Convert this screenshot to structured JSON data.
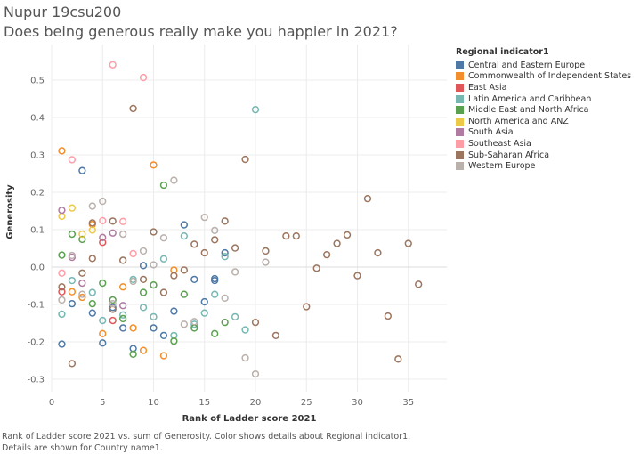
{
  "header": {
    "author": "Nupur 19csu200",
    "question": "Does being generous really make you happier in 2021?"
  },
  "legend": {
    "title": "Regional indicator1",
    "items": [
      {
        "label": "Central and Eastern Europe",
        "color": "#4e79a7"
      },
      {
        "label": "Commonwealth of Independent States",
        "color": "#f28e2b"
      },
      {
        "label": "East Asia",
        "color": "#e15759"
      },
      {
        "label": "Latin America and Caribbean",
        "color": "#76b7b2"
      },
      {
        "label": "Middle East and North Africa",
        "color": "#59a14f"
      },
      {
        "label": "North America and ANZ",
        "color": "#edc948"
      },
      {
        "label": "South Asia",
        "color": "#b07aa1"
      },
      {
        "label": "Southeast Asia",
        "color": "#ff9da7"
      },
      {
        "label": "Sub-Saharan Africa",
        "color": "#9c755f"
      },
      {
        "label": "Western Europe",
        "color": "#bab0ac"
      }
    ]
  },
  "footer": {
    "caption_line1": "Rank of Ladder score 2021 vs. sum of Generosity.  Color shows details about Regional indicator1.",
    "caption_line2": "Details are shown for Country name1."
  },
  "chart_data": {
    "type": "scatter",
    "title": "Does being generous really make you happier in 2021?",
    "xlabel": "Rank of Ladder score 2021",
    "ylabel": "Generosity",
    "xlim": [
      0,
      38
    ],
    "ylim": [
      -0.32,
      0.56
    ],
    "xticks": [
      0,
      5,
      10,
      15,
      20,
      25,
      30,
      35
    ],
    "yticks": [
      -0.3,
      -0.2,
      -0.1,
      0.0,
      0.1,
      0.2,
      0.3,
      0.4,
      0.5
    ],
    "ytick_labels": [
      "-0.3",
      "-0.2",
      "-0.1",
      "0.0",
      "0.1",
      "0.2",
      "0.3",
      "0.4",
      "0.5"
    ],
    "grid": true,
    "series": [
      {
        "name": "Central and Eastern Europe",
        "color": "#4e79a7",
        "points": [
          [
            1,
            -0.206
          ],
          [
            2,
            -0.098
          ],
          [
            3,
            0.258
          ],
          [
            4,
            -0.123
          ],
          [
            5,
            -0.203
          ],
          [
            6,
            -0.108
          ],
          [
            7,
            -0.163
          ],
          [
            8,
            -0.218
          ],
          [
            9,
            0.004
          ],
          [
            10,
            -0.163
          ],
          [
            11,
            -0.183
          ],
          [
            12,
            -0.118
          ],
          [
            13,
            0.113
          ],
          [
            14,
            -0.033
          ],
          [
            15,
            -0.093
          ],
          [
            16,
            -0.031
          ],
          [
            16,
            -0.036
          ],
          [
            17,
            0.038
          ]
        ]
      },
      {
        "name": "Commonwealth of Independent States",
        "color": "#f28e2b",
        "points": [
          [
            1,
            0.311
          ],
          [
            2,
            -0.066
          ],
          [
            3,
            -0.081
          ],
          [
            4,
            0.114
          ],
          [
            5,
            -0.178
          ],
          [
            7,
            -0.053
          ],
          [
            8,
            -0.163
          ],
          [
            9,
            -0.223
          ],
          [
            10,
            0.273
          ],
          [
            11,
            -0.237
          ],
          [
            12,
            -0.008
          ]
        ]
      },
      {
        "name": "East Asia",
        "color": "#e15759",
        "points": [
          [
            1,
            -0.066
          ],
          [
            5,
            0.066
          ],
          [
            6,
            -0.143
          ]
        ]
      },
      {
        "name": "Latin America and Caribbean",
        "color": "#76b7b2",
        "points": [
          [
            1,
            -0.126
          ],
          [
            2,
            -0.036
          ],
          [
            4,
            -0.068
          ],
          [
            5,
            -0.143
          ],
          [
            7,
            -0.128
          ],
          [
            8,
            -0.033
          ],
          [
            9,
            -0.108
          ],
          [
            10,
            -0.133
          ],
          [
            11,
            0.022
          ],
          [
            12,
            -0.183
          ],
          [
            13,
            0.083
          ],
          [
            14,
            -0.153
          ],
          [
            15,
            -0.123
          ],
          [
            16,
            -0.073
          ],
          [
            17,
            0.028
          ],
          [
            18,
            -0.133
          ],
          [
            19,
            -0.168
          ],
          [
            20,
            0.421
          ]
        ]
      },
      {
        "name": "Middle East and North Africa",
        "color": "#59a14f",
        "points": [
          [
            1,
            0.032
          ],
          [
            2,
            0.088
          ],
          [
            3,
            0.074
          ],
          [
            4,
            -0.098
          ],
          [
            5,
            -0.043
          ],
          [
            6,
            -0.088
          ],
          [
            7,
            -0.138
          ],
          [
            8,
            -0.233
          ],
          [
            9,
            -0.068
          ],
          [
            10,
            -0.048
          ],
          [
            11,
            0.219
          ],
          [
            12,
            -0.198
          ],
          [
            13,
            -0.073
          ],
          [
            14,
            -0.163
          ],
          [
            16,
            -0.178
          ],
          [
            17,
            -0.148
          ]
        ]
      },
      {
        "name": "North America and ANZ",
        "color": "#edc948",
        "points": [
          [
            1,
            0.136
          ],
          [
            2,
            0.158
          ],
          [
            3,
            0.088
          ],
          [
            4,
            0.099
          ]
        ]
      },
      {
        "name": "South Asia",
        "color": "#b07aa1",
        "points": [
          [
            1,
            0.152
          ],
          [
            2,
            0.026
          ],
          [
            3,
            -0.043
          ],
          [
            5,
            0.079
          ],
          [
            6,
            0.091
          ],
          [
            7,
            -0.103
          ]
        ]
      },
      {
        "name": "Southeast Asia",
        "color": "#ff9da7",
        "points": [
          [
            1,
            -0.016
          ],
          [
            2,
            0.287
          ],
          [
            5,
            0.124
          ],
          [
            6,
            0.541
          ],
          [
            7,
            0.122
          ],
          [
            8,
            0.036
          ],
          [
            9,
            0.507
          ]
        ]
      },
      {
        "name": "Sub-Saharan Africa",
        "color": "#9c755f",
        "points": [
          [
            1,
            -0.053
          ],
          [
            2,
            -0.258
          ],
          [
            3,
            -0.016
          ],
          [
            4,
            0.023
          ],
          [
            4,
            0.118
          ],
          [
            6,
            0.123
          ],
          [
            6,
            -0.113
          ],
          [
            7,
            0.018
          ],
          [
            8,
            0.424
          ],
          [
            9,
            -0.033
          ],
          [
            10,
            0.094
          ],
          [
            11,
            -0.068
          ],
          [
            12,
            -0.023
          ],
          [
            13,
            -0.008
          ],
          [
            14,
            0.061
          ],
          [
            15,
            0.038
          ],
          [
            16,
            0.073
          ],
          [
            17,
            0.123
          ],
          [
            18,
            0.051
          ],
          [
            19,
            0.288
          ],
          [
            20,
            -0.148
          ],
          [
            21,
            0.043
          ],
          [
            22,
            -0.183
          ],
          [
            23,
            0.083
          ],
          [
            24,
            0.083
          ],
          [
            25,
            -0.106
          ],
          [
            26,
            -0.003
          ],
          [
            27,
            0.033
          ],
          [
            28,
            0.063
          ],
          [
            29,
            0.086
          ],
          [
            30,
            -0.023
          ],
          [
            31,
            0.183
          ],
          [
            32,
            0.038
          ],
          [
            33,
            -0.131
          ],
          [
            34,
            -0.246
          ],
          [
            35,
            0.063
          ],
          [
            36,
            -0.046
          ]
        ]
      },
      {
        "name": "Western Europe",
        "color": "#bab0ac",
        "points": [
          [
            1,
            -0.088
          ],
          [
            2,
            0.031
          ],
          [
            3,
            -0.073
          ],
          [
            4,
            0.163
          ],
          [
            5,
            0.176
          ],
          [
            6,
            -0.098
          ],
          [
            7,
            0.088
          ],
          [
            8,
            -0.038
          ],
          [
            9,
            0.043
          ],
          [
            10,
            0.006
          ],
          [
            11,
            0.078
          ],
          [
            12,
            0.232
          ],
          [
            13,
            -0.153
          ],
          [
            14,
            -0.146
          ],
          [
            15,
            0.133
          ],
          [
            16,
            0.098
          ],
          [
            17,
            -0.083
          ],
          [
            18,
            -0.013
          ],
          [
            19,
            -0.243
          ],
          [
            20,
            -0.286
          ],
          [
            21,
            0.013
          ]
        ]
      }
    ]
  }
}
